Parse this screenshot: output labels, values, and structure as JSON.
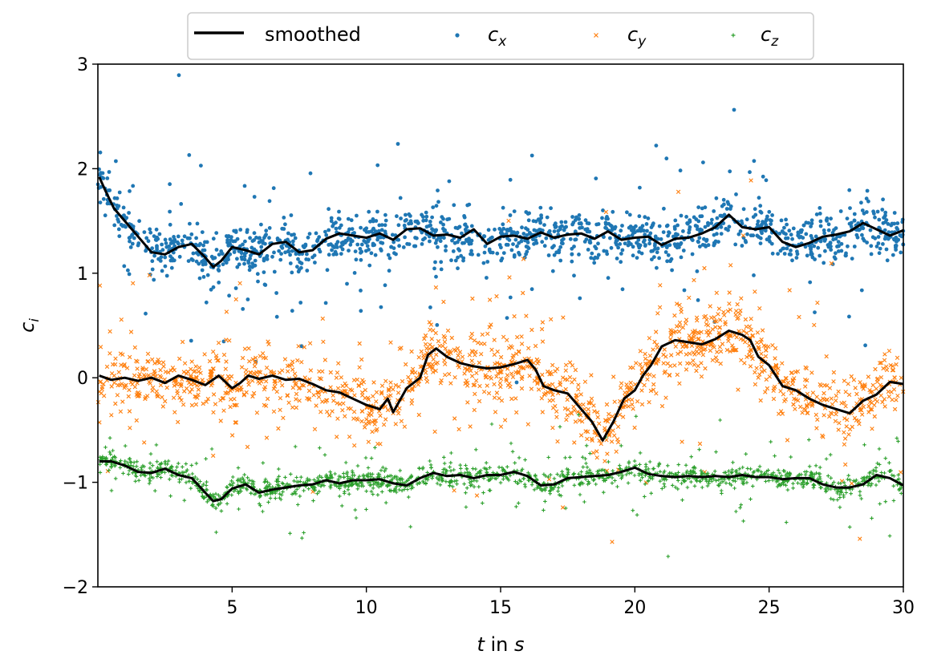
{
  "chart_data": {
    "type": "scatter",
    "x_ticks": [
      "5",
      "10",
      "15",
      "20",
      "25",
      "30"
    ],
    "y_ticks": [
      "3",
      "2",
      "1",
      "0",
      "−1",
      "−2"
    ],
    "xlim": [
      0,
      30
    ],
    "ylim": [
      -2,
      3
    ],
    "xlabel": {
      "var": "t",
      "rest": " in ",
      "unit": "s"
    },
    "ylabel": {
      "var": "c",
      "sub": "i"
    },
    "grid": false,
    "legend_position": "top-center",
    "legend": [
      {
        "key": "smoothed",
        "label": "smoothed",
        "marker": "line",
        "color": "#000000"
      },
      {
        "key": "cx",
        "label_var": "c",
        "label_sub": "x",
        "marker": "dot",
        "color": "#1f77b4"
      },
      {
        "key": "cy",
        "label_var": "c",
        "label_sub": "y",
        "marker": "x",
        "color": "#ff7f0e"
      },
      {
        "key": "cz",
        "label_var": "c",
        "label_sub": "z",
        "marker": "plus",
        "color": "#2ca02c"
      }
    ],
    "series": [
      {
        "name": "c_x",
        "color": "#1f77b4",
        "marker": "dot",
        "spread": 0.11,
        "smoothed": [
          [
            0.05,
            1.92
          ],
          [
            0.3,
            1.78
          ],
          [
            0.6,
            1.62
          ],
          [
            1.0,
            1.5
          ],
          [
            1.5,
            1.35
          ],
          [
            2.0,
            1.2
          ],
          [
            2.5,
            1.18
          ],
          [
            3.0,
            1.25
          ],
          [
            3.5,
            1.28
          ],
          [
            4.0,
            1.15
          ],
          [
            4.3,
            1.06
          ],
          [
            4.6,
            1.12
          ],
          [
            5.0,
            1.25
          ],
          [
            5.5,
            1.22
          ],
          [
            6.0,
            1.18
          ],
          [
            6.5,
            1.28
          ],
          [
            7.0,
            1.3
          ],
          [
            7.5,
            1.2
          ],
          [
            8.0,
            1.22
          ],
          [
            8.5,
            1.33
          ],
          [
            9.0,
            1.38
          ],
          [
            9.5,
            1.36
          ],
          [
            10.0,
            1.34
          ],
          [
            10.5,
            1.38
          ],
          [
            11.0,
            1.32
          ],
          [
            11.5,
            1.42
          ],
          [
            12.0,
            1.43
          ],
          [
            12.5,
            1.36
          ],
          [
            13.0,
            1.37
          ],
          [
            13.5,
            1.34
          ],
          [
            14.0,
            1.42
          ],
          [
            14.5,
            1.28
          ],
          [
            15.0,
            1.35
          ],
          [
            15.5,
            1.36
          ],
          [
            16.0,
            1.33
          ],
          [
            16.5,
            1.39
          ],
          [
            17.0,
            1.34
          ],
          [
            17.5,
            1.37
          ],
          [
            18.0,
            1.38
          ],
          [
            18.5,
            1.33
          ],
          [
            19.0,
            1.4
          ],
          [
            19.5,
            1.32
          ],
          [
            20.0,
            1.34
          ],
          [
            20.5,
            1.35
          ],
          [
            21.0,
            1.27
          ],
          [
            21.5,
            1.33
          ],
          [
            22.0,
            1.34
          ],
          [
            22.5,
            1.38
          ],
          [
            23.0,
            1.44
          ],
          [
            23.5,
            1.56
          ],
          [
            24.0,
            1.44
          ],
          [
            24.5,
            1.42
          ],
          [
            25.0,
            1.44
          ],
          [
            25.5,
            1.3
          ],
          [
            26.0,
            1.25
          ],
          [
            26.5,
            1.29
          ],
          [
            27.0,
            1.35
          ],
          [
            27.5,
            1.37
          ],
          [
            28.0,
            1.4
          ],
          [
            28.5,
            1.48
          ],
          [
            29.0,
            1.42
          ],
          [
            29.5,
            1.36
          ],
          [
            30.0,
            1.41
          ]
        ]
      },
      {
        "name": "c_y",
        "color": "#ff7f0e",
        "marker": "x",
        "spread": 0.15,
        "smoothed": [
          [
            0.05,
            0.02
          ],
          [
            0.5,
            -0.02
          ],
          [
            1.0,
            0.0
          ],
          [
            1.5,
            -0.03
          ],
          [
            2.0,
            0.0
          ],
          [
            2.5,
            -0.05
          ],
          [
            3.0,
            0.02
          ],
          [
            3.5,
            -0.02
          ],
          [
            4.0,
            -0.07
          ],
          [
            4.5,
            0.02
          ],
          [
            5.0,
            -0.1
          ],
          [
            5.3,
            -0.05
          ],
          [
            5.6,
            0.02
          ],
          [
            6.0,
            -0.01
          ],
          [
            6.5,
            0.02
          ],
          [
            7.0,
            -0.02
          ],
          [
            7.5,
            -0.01
          ],
          [
            8.0,
            -0.06
          ],
          [
            8.5,
            -0.12
          ],
          [
            9.0,
            -0.14
          ],
          [
            9.5,
            -0.2
          ],
          [
            10.0,
            -0.26
          ],
          [
            10.5,
            -0.3
          ],
          [
            10.8,
            -0.2
          ],
          [
            11.0,
            -0.33
          ],
          [
            11.5,
            -0.1
          ],
          [
            12.0,
            0.0
          ],
          [
            12.3,
            0.22
          ],
          [
            12.6,
            0.28
          ],
          [
            13.0,
            0.2
          ],
          [
            13.5,
            0.14
          ],
          [
            14.0,
            0.11
          ],
          [
            14.5,
            0.09
          ],
          [
            15.0,
            0.1
          ],
          [
            15.5,
            0.13
          ],
          [
            16.0,
            0.17
          ],
          [
            16.3,
            0.08
          ],
          [
            16.6,
            -0.08
          ],
          [
            17.0,
            -0.12
          ],
          [
            17.5,
            -0.15
          ],
          [
            18.0,
            -0.3
          ],
          [
            18.4,
            -0.42
          ],
          [
            18.8,
            -0.6
          ],
          [
            19.2,
            -0.42
          ],
          [
            19.6,
            -0.2
          ],
          [
            20.0,
            -0.12
          ],
          [
            20.3,
            0.02
          ],
          [
            20.6,
            0.12
          ],
          [
            21.0,
            0.3
          ],
          [
            21.5,
            0.36
          ],
          [
            22.0,
            0.34
          ],
          [
            22.5,
            0.32
          ],
          [
            23.0,
            0.37
          ],
          [
            23.5,
            0.45
          ],
          [
            24.0,
            0.41
          ],
          [
            24.3,
            0.36
          ],
          [
            24.6,
            0.2
          ],
          [
            25.0,
            0.12
          ],
          [
            25.5,
            -0.08
          ],
          [
            26.0,
            -0.12
          ],
          [
            26.5,
            -0.2
          ],
          [
            27.0,
            -0.26
          ],
          [
            27.5,
            -0.3
          ],
          [
            28.0,
            -0.34
          ],
          [
            28.5,
            -0.22
          ],
          [
            29.0,
            -0.16
          ],
          [
            29.5,
            -0.04
          ],
          [
            30.0,
            -0.06
          ]
        ]
      },
      {
        "name": "c_z",
        "color": "#2ca02c",
        "marker": "plus",
        "spread": 0.05,
        "smoothed": [
          [
            0.05,
            -0.8
          ],
          [
            0.5,
            -0.8
          ],
          [
            1.0,
            -0.84
          ],
          [
            1.5,
            -0.9
          ],
          [
            2.0,
            -0.91
          ],
          [
            2.5,
            -0.87
          ],
          [
            3.0,
            -0.93
          ],
          [
            3.5,
            -0.96
          ],
          [
            4.0,
            -1.1
          ],
          [
            4.3,
            -1.18
          ],
          [
            4.6,
            -1.16
          ],
          [
            5.0,
            -1.06
          ],
          [
            5.5,
            -1.02
          ],
          [
            6.0,
            -1.1
          ],
          [
            6.5,
            -1.07
          ],
          [
            7.0,
            -1.05
          ],
          [
            7.5,
            -1.03
          ],
          [
            8.0,
            -1.02
          ],
          [
            8.5,
            -0.98
          ],
          [
            9.0,
            -1.01
          ],
          [
            9.5,
            -0.98
          ],
          [
            10.0,
            -0.98
          ],
          [
            10.5,
            -0.97
          ],
          [
            11.0,
            -1.01
          ],
          [
            11.5,
            -1.03
          ],
          [
            12.0,
            -0.96
          ],
          [
            12.5,
            -0.91
          ],
          [
            13.0,
            -0.94
          ],
          [
            13.5,
            -0.93
          ],
          [
            14.0,
            -0.96
          ],
          [
            14.5,
            -0.93
          ],
          [
            15.0,
            -0.93
          ],
          [
            15.5,
            -0.9
          ],
          [
            16.0,
            -0.94
          ],
          [
            16.5,
            -1.03
          ],
          [
            17.0,
            -1.02
          ],
          [
            17.5,
            -0.96
          ],
          [
            18.0,
            -0.95
          ],
          [
            18.5,
            -0.94
          ],
          [
            19.0,
            -0.93
          ],
          [
            19.5,
            -0.9
          ],
          [
            20.0,
            -0.86
          ],
          [
            20.5,
            -0.92
          ],
          [
            21.0,
            -0.94
          ],
          [
            21.5,
            -0.95
          ],
          [
            22.0,
            -0.94
          ],
          [
            22.5,
            -0.95
          ],
          [
            23.0,
            -0.94
          ],
          [
            23.5,
            -0.95
          ],
          [
            24.0,
            -0.93
          ],
          [
            24.5,
            -0.95
          ],
          [
            25.0,
            -0.95
          ],
          [
            25.5,
            -0.97
          ],
          [
            26.0,
            -0.96
          ],
          [
            26.5,
            -0.96
          ],
          [
            27.0,
            -1.02
          ],
          [
            27.5,
            -1.05
          ],
          [
            28.0,
            -1.05
          ],
          [
            28.5,
            -1.02
          ],
          [
            29.0,
            -0.93
          ],
          [
            29.5,
            -0.96
          ],
          [
            30.0,
            -1.03
          ]
        ]
      }
    ]
  }
}
